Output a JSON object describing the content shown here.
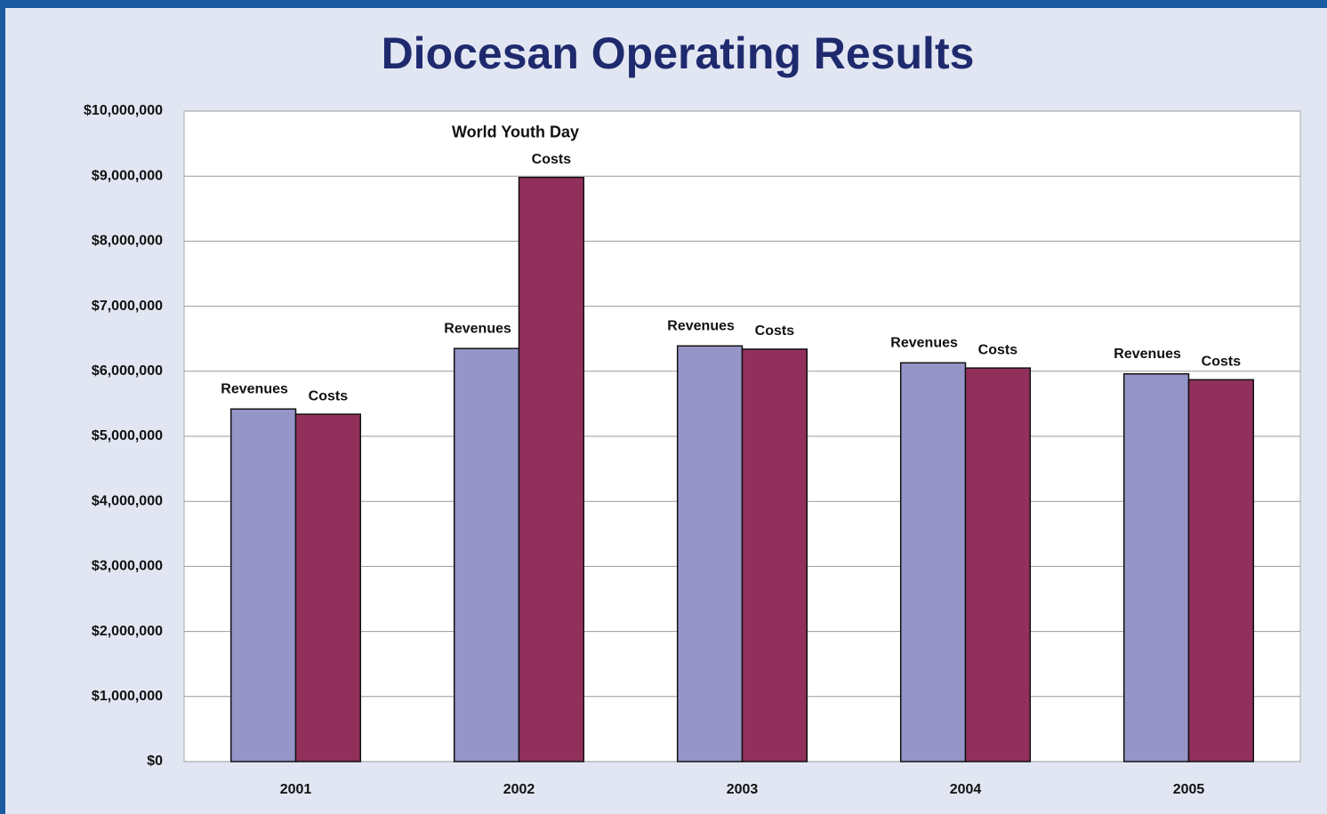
{
  "chart_data": {
    "type": "bar",
    "title": "Diocesan Operating Results",
    "categories": [
      "2001",
      "2002",
      "2003",
      "2004",
      "2005"
    ],
    "series": [
      {
        "name": "Revenues",
        "color": "#9595c8",
        "values": [
          5420000,
          6350000,
          6390000,
          6130000,
          5960000
        ]
      },
      {
        "name": "Costs",
        "color": "#92305c",
        "values": [
          5340000,
          8980000,
          6340000,
          6050000,
          5870000
        ]
      }
    ],
    "annotation": "World Youth Day",
    "ylim": [
      0,
      10000000
    ],
    "yticks": [
      {
        "value": 0,
        "label": "$0"
      },
      {
        "value": 1000000,
        "label": "$1,000,000"
      },
      {
        "value": 2000000,
        "label": "$2,000,000"
      },
      {
        "value": 3000000,
        "label": "$3,000,000"
      },
      {
        "value": 4000000,
        "label": "$4,000,000"
      },
      {
        "value": 5000000,
        "label": "$5,000,000"
      },
      {
        "value": 6000000,
        "label": "$6,000,000"
      },
      {
        "value": 7000000,
        "label": "$7,000,000"
      },
      {
        "value": 8000000,
        "label": "$8,000,000"
      },
      {
        "value": 9000000,
        "label": "$9,000,000"
      },
      {
        "value": 10000000,
        "label": "$10,000,000"
      }
    ],
    "grid": true
  }
}
